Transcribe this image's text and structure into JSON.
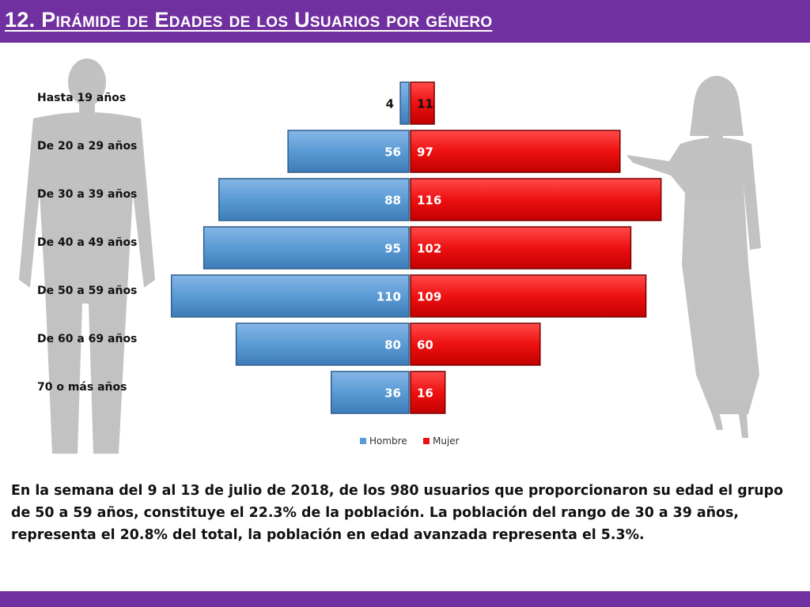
{
  "title": "12. Pirámide de Edades de los Usuarios por género",
  "caption": "En la semana del 9 al 13 de julio de 2018, de los 980 usuarios  que proporcionaron su edad el grupo de 50 a 59 años, constituye el 22.3% de la población. La población del rango de 30 a 39 años, representa el 20.8% del total, la población en edad avanzada representa el 5.3%.",
  "colors": {
    "accent": "#7030a0",
    "hombre": "#5b9bd5",
    "mujer": "#ee1111",
    "silhouette": "#b4b4b4"
  },
  "icons": {
    "man": "man-silhouette-icon",
    "woman": "woman-silhouette-icon"
  },
  "chart_data": {
    "type": "bar",
    "subtype": "population-pyramid",
    "categories": [
      "Hasta 19 años",
      "De 20 a 29 años",
      "De 30 a 39 años",
      "De 40 a 49 años",
      "De 50 a 59 años",
      "De 60 a 69 años",
      "70 o más años"
    ],
    "series": [
      {
        "name": "Hombre",
        "values": [
          4,
          56,
          88,
          95,
          110,
          80,
          36
        ],
        "side": "left"
      },
      {
        "name": "Mujer",
        "values": [
          11,
          97,
          116,
          102,
          109,
          60,
          16
        ],
        "side": "right"
      }
    ],
    "title": "",
    "xlabel": "",
    "ylabel": "",
    "xlim": [
      0,
      120
    ],
    "legend_position": "bottom"
  }
}
